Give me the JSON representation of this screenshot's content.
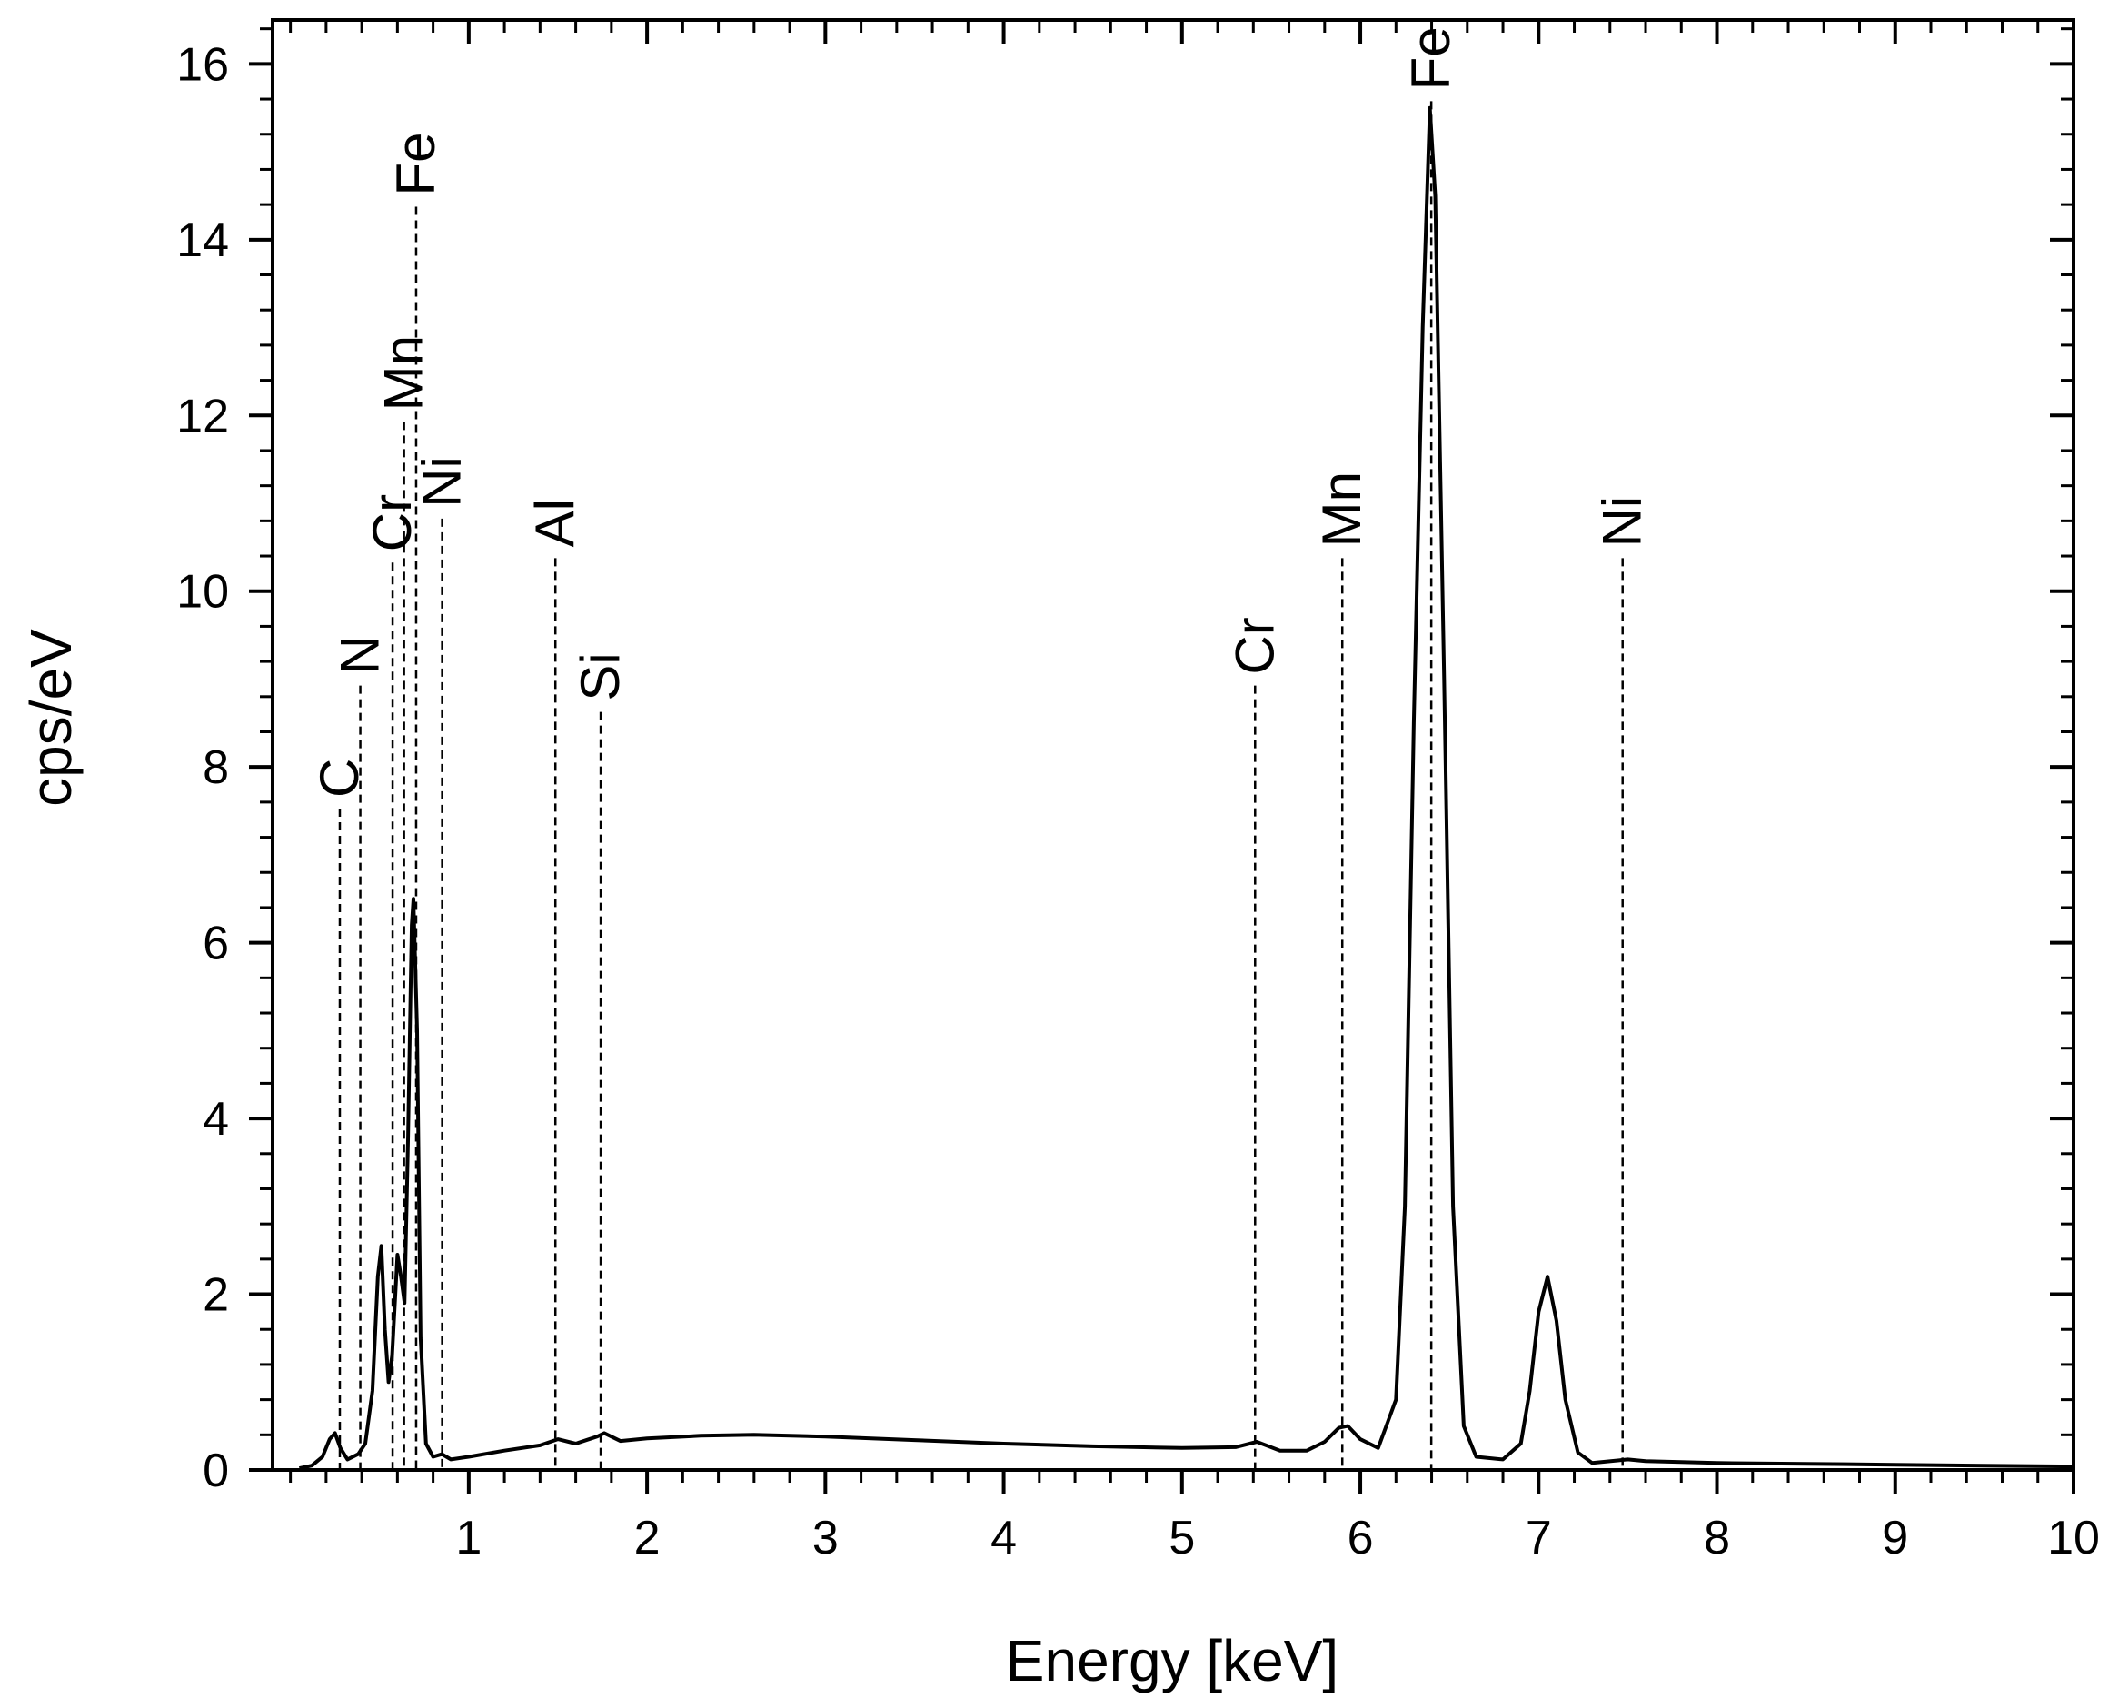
{
  "chart_data": {
    "type": "line",
    "title": "",
    "xlabel": "Energy [keV]",
    "ylabel": "cps/eV",
    "xlim": [
      -0.1,
      10
    ],
    "ylim": [
      0,
      16.5
    ],
    "x_ticks": [
      1,
      2,
      3,
      4,
      5,
      6,
      7,
      8,
      9,
      10
    ],
    "y_ticks": [
      0,
      2,
      4,
      6,
      8,
      10,
      12,
      14,
      16
    ],
    "x_tick_labels": [
      "1",
      "2",
      "3",
      "4",
      "5",
      "6",
      "7",
      "8",
      "9",
      "10"
    ],
    "y_tick_labels": [
      "0",
      "2",
      "4",
      "6",
      "8",
      "10",
      "12",
      "14",
      "16"
    ],
    "grid": false,
    "line_color": "#000000",
    "series": [
      {
        "values": [
          [
            0.05,
            0.02
          ],
          [
            0.12,
            0.05
          ],
          [
            0.18,
            0.15
          ],
          [
            0.22,
            0.35
          ],
          [
            0.25,
            0.42
          ],
          [
            0.28,
            0.25
          ],
          [
            0.32,
            0.12
          ],
          [
            0.38,
            0.18
          ],
          [
            0.42,
            0.3
          ],
          [
            0.46,
            0.9
          ],
          [
            0.49,
            2.2
          ],
          [
            0.51,
            2.55
          ],
          [
            0.53,
            1.6
          ],
          [
            0.55,
            1.0
          ],
          [
            0.57,
            1.3
          ],
          [
            0.6,
            2.45
          ],
          [
            0.62,
            2.2
          ],
          [
            0.64,
            1.9
          ],
          [
            0.66,
            3.8
          ],
          [
            0.68,
            6.2
          ],
          [
            0.69,
            6.5
          ],
          [
            0.71,
            5.0
          ],
          [
            0.73,
            1.5
          ],
          [
            0.76,
            0.3
          ],
          [
            0.8,
            0.15
          ],
          [
            0.85,
            0.18
          ],
          [
            0.9,
            0.12
          ],
          [
            1.0,
            0.15
          ],
          [
            1.2,
            0.22
          ],
          [
            1.4,
            0.28
          ],
          [
            1.5,
            0.35
          ],
          [
            1.6,
            0.3
          ],
          [
            1.72,
            0.38
          ],
          [
            1.76,
            0.42
          ],
          [
            1.85,
            0.33
          ],
          [
            2.0,
            0.36
          ],
          [
            2.3,
            0.39
          ],
          [
            2.6,
            0.4
          ],
          [
            3.0,
            0.38
          ],
          [
            3.5,
            0.34
          ],
          [
            4.0,
            0.3
          ],
          [
            4.5,
            0.27
          ],
          [
            5.0,
            0.25
          ],
          [
            5.3,
            0.26
          ],
          [
            5.42,
            0.32
          ],
          [
            5.55,
            0.22
          ],
          [
            5.7,
            0.22
          ],
          [
            5.8,
            0.32
          ],
          [
            5.88,
            0.48
          ],
          [
            5.93,
            0.5
          ],
          [
            6.0,
            0.35
          ],
          [
            6.1,
            0.25
          ],
          [
            6.2,
            0.8
          ],
          [
            6.25,
            3.0
          ],
          [
            6.3,
            8.5
          ],
          [
            6.35,
            13.0
          ],
          [
            6.39,
            15.5
          ],
          [
            6.42,
            14.5
          ],
          [
            6.47,
            9.0
          ],
          [
            6.52,
            3.0
          ],
          [
            6.58,
            0.5
          ],
          [
            6.65,
            0.15
          ],
          [
            6.8,
            0.12
          ],
          [
            6.9,
            0.3
          ],
          [
            6.95,
            0.9
          ],
          [
            7.0,
            1.8
          ],
          [
            7.05,
            2.2
          ],
          [
            7.1,
            1.7
          ],
          [
            7.15,
            0.8
          ],
          [
            7.22,
            0.2
          ],
          [
            7.3,
            0.08
          ],
          [
            7.5,
            0.12
          ],
          [
            7.6,
            0.1
          ],
          [
            8.0,
            0.08
          ],
          [
            8.5,
            0.07
          ],
          [
            9.0,
            0.06
          ],
          [
            9.5,
            0.05
          ],
          [
            10.0,
            0.04
          ]
        ]
      }
    ],
    "annotations": [
      {
        "text": "C",
        "x": 0.277,
        "label_y": 7.65
      },
      {
        "text": "N",
        "x": 0.392,
        "label_y": 9.05
      },
      {
        "text": "Cr",
        "x": 0.573,
        "label_y": 10.45
      },
      {
        "text": "Mn",
        "x": 0.637,
        "label_y": 12.05
      },
      {
        "text": "Fe",
        "x": 0.705,
        "label_y": 14.5
      },
      {
        "text": "Ni",
        "x": 0.851,
        "label_y": 10.95
      },
      {
        "text": "Al",
        "x": 1.486,
        "label_y": 10.5
      },
      {
        "text": "Si",
        "x": 1.74,
        "label_y": 8.75
      },
      {
        "text": "Cr",
        "x": 5.41,
        "label_y": 9.05
      },
      {
        "text": "Mn",
        "x": 5.899,
        "label_y": 10.5
      },
      {
        "text": "Fe",
        "x": 6.398,
        "label_y": 15.7
      },
      {
        "text": "Ni",
        "x": 7.471,
        "label_y": 10.5
      }
    ]
  }
}
